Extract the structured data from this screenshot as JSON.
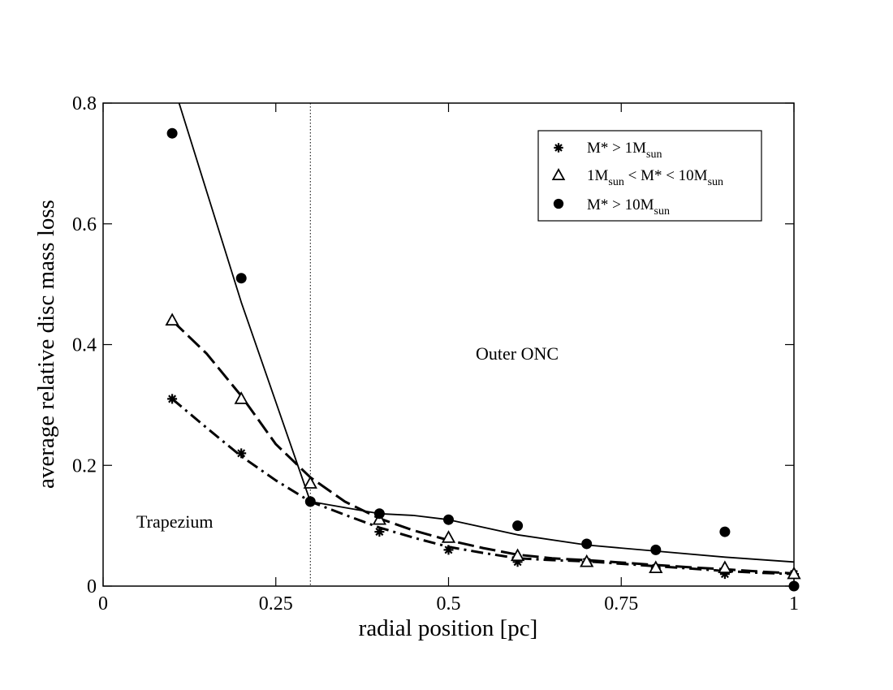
{
  "chart_data": {
    "type": "scatter",
    "title": "",
    "xlabel": "radial position [pc]",
    "ylabel": "average relative disc mass loss",
    "xlim": [
      0,
      1
    ],
    "ylim": [
      0,
      0.8
    ],
    "xticks": [
      0,
      0.25,
      0.5,
      0.75,
      1
    ],
    "xtick_labels": [
      "0",
      "0.25",
      "0.5",
      "0.75",
      "1"
    ],
    "yticks": [
      0,
      0.2,
      0.4,
      0.6,
      0.8
    ],
    "ytick_labels": [
      "0",
      "0.2",
      "0.4",
      "0.6",
      "0.8"
    ],
    "grid": false,
    "legend_position": "top-right",
    "vline": {
      "x": 0.3,
      "style": "dotted"
    },
    "annotations": [
      {
        "text": "Trapezium",
        "x": 0.05,
        "y": 0.1
      },
      {
        "text": "Outer ONC",
        "x": 0.54,
        "y": 0.38
      }
    ],
    "series": [
      {
        "name": "M* > 1Msun",
        "legend": {
          "pre": "M* > 1M",
          "sub1": "sun",
          "mid": "",
          "sub2": ""
        },
        "marker": "asterisk",
        "x": [
          0.1,
          0.2,
          0.3,
          0.4,
          0.5,
          0.6,
          0.7,
          0.8,
          0.9,
          1.0
        ],
        "values": [
          0.31,
          0.22,
          0.14,
          0.09,
          0.06,
          0.04,
          0.04,
          0.03,
          0.02,
          0.02
        ],
        "fit": {
          "style": "dashdot",
          "x": [
            0.1,
            0.15,
            0.2,
            0.25,
            0.3,
            0.35,
            0.4,
            0.45,
            0.5,
            0.55,
            0.6,
            0.65,
            0.7,
            0.75,
            0.8,
            0.85,
            0.9,
            0.95,
            1.0
          ],
          "values": [
            0.31,
            0.262,
            0.215,
            0.175,
            0.14,
            0.118,
            0.097,
            0.08,
            0.065,
            0.055,
            0.046,
            0.043,
            0.041,
            0.037,
            0.033,
            0.029,
            0.025,
            0.022,
            0.02
          ]
        }
      },
      {
        "name": "1Msun < M* < 10Msun",
        "legend": {
          "pre": "1M",
          "sub1": "sun",
          "mid": " < M* < 10M",
          "sub2": "sun"
        },
        "marker": "triangle",
        "x": [
          0.1,
          0.2,
          0.3,
          0.4,
          0.5,
          0.6,
          0.7,
          0.8,
          0.9,
          1.0
        ],
        "values": [
          0.44,
          0.31,
          0.17,
          0.11,
          0.08,
          0.05,
          0.04,
          0.03,
          0.03,
          0.02
        ],
        "fit": {
          "style": "dashed",
          "x": [
            0.1,
            0.15,
            0.2,
            0.25,
            0.3,
            0.35,
            0.4,
            0.45,
            0.5,
            0.55,
            0.6,
            0.65,
            0.7,
            0.75,
            0.8,
            0.85,
            0.9,
            0.95,
            1.0
          ],
          "values": [
            0.44,
            0.385,
            0.315,
            0.235,
            0.18,
            0.14,
            0.112,
            0.092,
            0.076,
            0.063,
            0.052,
            0.046,
            0.043,
            0.039,
            0.035,
            0.031,
            0.028,
            0.024,
            0.021
          ]
        }
      },
      {
        "name": "M* > 10Msun",
        "legend": {
          "pre": "M* > 10M",
          "sub1": "sun",
          "mid": "",
          "sub2": ""
        },
        "marker": "circle",
        "x": [
          0.1,
          0.2,
          0.3,
          0.4,
          0.5,
          0.6,
          0.7,
          0.8,
          0.9,
          1.0
        ],
        "values": [
          0.75,
          0.51,
          0.14,
          0.12,
          0.11,
          0.1,
          0.07,
          0.06,
          0.09,
          0.0
        ],
        "fit": {
          "style": "solid",
          "x": [
            0.11,
            0.2,
            0.3,
            0.4,
            0.45,
            0.5,
            0.6,
            0.7,
            0.8,
            0.9,
            1.0
          ],
          "values": [
            0.8,
            0.47,
            0.14,
            0.12,
            0.117,
            0.11,
            0.085,
            0.068,
            0.058,
            0.048,
            0.04
          ]
        }
      }
    ]
  }
}
